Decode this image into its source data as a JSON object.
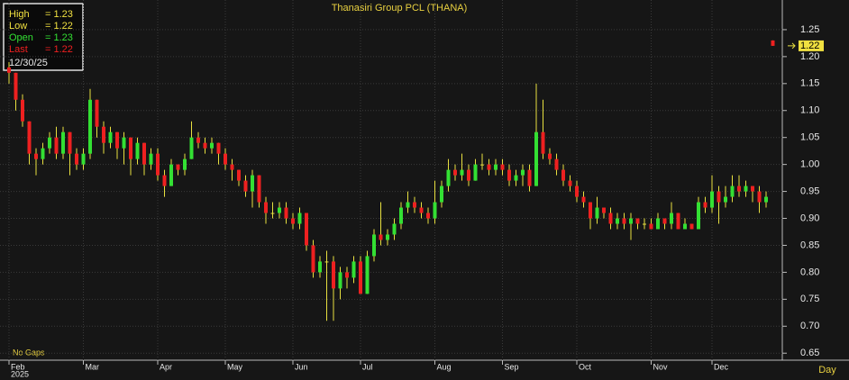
{
  "chart_data": {
    "type": "candlestick",
    "title": "Thanasiri Group PCL (THANA)",
    "categories": [
      "Feb",
      null,
      null,
      null,
      null,
      null,
      null,
      null,
      null,
      null,
      null,
      "Mar",
      null,
      null,
      null,
      null,
      null,
      null,
      null,
      null,
      null,
      null,
      "Apr",
      null,
      null,
      null,
      null,
      null,
      null,
      null,
      null,
      null,
      "May",
      null,
      null,
      null,
      null,
      null,
      null,
      null,
      null,
      null,
      "Jun",
      null,
      null,
      null,
      null,
      null,
      null,
      null,
      null,
      null,
      "Jul",
      null,
      null,
      null,
      null,
      null,
      null,
      null,
      null,
      null,
      null,
      "Aug",
      null,
      null,
      null,
      null,
      null,
      null,
      null,
      null,
      null,
      "Sep",
      null,
      null,
      null,
      null,
      null,
      null,
      null,
      null,
      null,
      null,
      "Oct",
      null,
      null,
      null,
      null,
      null,
      null,
      null,
      null,
      null,
      null,
      "Nov",
      null,
      null,
      null,
      null,
      null,
      null,
      null,
      null,
      "Dec",
      null,
      null,
      null,
      null,
      null,
      null,
      null,
      null,
      null
    ],
    "ohlc": [
      [
        1.18,
        1.19,
        1.15,
        1.17
      ],
      [
        1.17,
        1.17,
        1.1,
        1.12
      ],
      [
        1.12,
        1.13,
        1.07,
        1.08
      ],
      [
        1.08,
        1.08,
        1.0,
        1.02
      ],
      [
        1.02,
        1.03,
        0.98,
        1.01
      ],
      [
        1.01,
        1.04,
        1.0,
        1.03
      ],
      [
        1.03,
        1.06,
        1.02,
        1.05
      ],
      [
        1.05,
        1.07,
        1.01,
        1.02
      ],
      [
        1.02,
        1.07,
        1.01,
        1.06
      ],
      [
        1.06,
        1.06,
        0.98,
        1.02
      ],
      [
        1.02,
        1.03,
        0.99,
        1.0
      ],
      [
        1.0,
        1.03,
        0.99,
        1.02
      ],
      [
        1.02,
        1.14,
        1.01,
        1.12
      ],
      [
        1.12,
        1.12,
        1.05,
        1.07
      ],
      [
        1.07,
        1.08,
        1.02,
        1.04
      ],
      [
        1.04,
        1.07,
        1.03,
        1.06
      ],
      [
        1.06,
        1.06,
        1.01,
        1.03
      ],
      [
        1.03,
        1.06,
        1.0,
        1.05
      ],
      [
        1.05,
        1.05,
        0.98,
        1.01
      ],
      [
        1.01,
        1.05,
        1.0,
        1.04
      ],
      [
        1.04,
        1.04,
        0.98,
        1.0
      ],
      [
        1.0,
        1.03,
        0.99,
        1.02
      ],
      [
        1.02,
        1.03,
        0.97,
        0.98
      ],
      [
        0.98,
        0.99,
        0.94,
        0.96
      ],
      [
        0.96,
        1.01,
        0.96,
        1.0
      ],
      [
        1.0,
        1.0,
        0.98,
        0.99
      ],
      [
        0.99,
        1.02,
        0.98,
        1.01
      ],
      [
        1.01,
        1.08,
        1.01,
        1.05
      ],
      [
        1.05,
        1.06,
        1.03,
        1.04
      ],
      [
        1.04,
        1.05,
        1.02,
        1.03
      ],
      [
        1.03,
        1.05,
        1.02,
        1.04
      ],
      [
        1.04,
        1.04,
        1.0,
        1.02
      ],
      [
        1.02,
        1.03,
        0.99,
        1.0
      ],
      [
        1.0,
        1.01,
        0.97,
        0.99
      ],
      [
        0.99,
        0.99,
        0.96,
        0.97
      ],
      [
        0.97,
        0.98,
        0.94,
        0.95
      ],
      [
        0.95,
        0.99,
        0.92,
        0.98
      ],
      [
        0.98,
        0.98,
        0.92,
        0.93
      ],
      [
        0.93,
        0.94,
        0.89,
        0.91
      ],
      [
        0.91,
        0.93,
        0.9,
        0.91
      ],
      [
        0.91,
        0.93,
        0.9,
        0.92
      ],
      [
        0.92,
        0.93,
        0.89,
        0.9
      ],
      [
        0.9,
        0.91,
        0.88,
        0.89
      ],
      [
        0.89,
        0.92,
        0.88,
        0.91
      ],
      [
        0.91,
        0.91,
        0.84,
        0.85
      ],
      [
        0.85,
        0.86,
        0.79,
        0.8
      ],
      [
        0.8,
        0.83,
        0.79,
        0.82
      ],
      [
        0.82,
        0.84,
        0.71,
        0.82
      ],
      [
        0.82,
        0.83,
        0.71,
        0.77
      ],
      [
        0.77,
        0.81,
        0.75,
        0.8
      ],
      [
        0.8,
        0.81,
        0.77,
        0.79
      ],
      [
        0.79,
        0.83,
        0.78,
        0.82
      ],
      [
        0.82,
        0.83,
        0.76,
        0.76
      ],
      [
        0.76,
        0.84,
        0.76,
        0.83
      ],
      [
        0.83,
        0.88,
        0.82,
        0.87
      ],
      [
        0.87,
        0.93,
        0.85,
        0.86
      ],
      [
        0.86,
        0.88,
        0.85,
        0.87
      ],
      [
        0.87,
        0.9,
        0.86,
        0.89
      ],
      [
        0.89,
        0.93,
        0.88,
        0.92
      ],
      [
        0.92,
        0.95,
        0.91,
        0.93
      ],
      [
        0.93,
        0.94,
        0.91,
        0.92
      ],
      [
        0.92,
        0.93,
        0.9,
        0.91
      ],
      [
        0.91,
        0.92,
        0.89,
        0.9
      ],
      [
        0.9,
        0.97,
        0.89,
        0.93
      ],
      [
        0.93,
        0.97,
        0.92,
        0.96
      ],
      [
        0.96,
        1.01,
        0.95,
        0.99
      ],
      [
        0.99,
        1.0,
        0.97,
        0.98
      ],
      [
        0.98,
        1.02,
        0.97,
        0.99
      ],
      [
        0.99,
        1.0,
        0.96,
        0.97
      ],
      [
        0.97,
        1.01,
        0.97,
        1.0
      ],
      [
        1.0,
        1.02,
        0.99,
        1.0
      ],
      [
        1.0,
        1.01,
        0.98,
        0.99
      ],
      [
        0.99,
        1.01,
        0.98,
        1.0
      ],
      [
        1.0,
        1.01,
        0.98,
        0.99
      ],
      [
        0.99,
        1.0,
        0.96,
        0.97
      ],
      [
        0.97,
        0.99,
        0.96,
        0.98
      ],
      [
        0.98,
        1.0,
        0.96,
        0.99
      ],
      [
        0.99,
        1.0,
        0.95,
        0.96
      ],
      [
        0.96,
        1.15,
        0.96,
        1.06
      ],
      [
        1.06,
        1.12,
        1.01,
        1.02
      ],
      [
        1.02,
        1.03,
        1.0,
        1.01
      ],
      [
        1.01,
        1.02,
        0.98,
        0.99
      ],
      [
        0.99,
        1.0,
        0.96,
        0.97
      ],
      [
        0.97,
        0.98,
        0.95,
        0.96
      ],
      [
        0.96,
        0.97,
        0.93,
        0.94
      ],
      [
        0.94,
        0.95,
        0.92,
        0.93
      ],
      [
        0.93,
        0.93,
        0.88,
        0.9
      ],
      [
        0.9,
        0.94,
        0.89,
        0.92
      ],
      [
        0.92,
        0.92,
        0.9,
        0.91
      ],
      [
        0.91,
        0.92,
        0.88,
        0.89
      ],
      [
        0.89,
        0.91,
        0.88,
        0.9
      ],
      [
        0.9,
        0.91,
        0.88,
        0.89
      ],
      [
        0.89,
        0.91,
        0.86,
        0.9
      ],
      [
        0.9,
        0.9,
        0.88,
        0.89
      ],
      [
        0.89,
        0.9,
        0.88,
        0.89
      ],
      [
        0.89,
        0.9,
        0.88,
        0.88
      ],
      [
        0.88,
        0.91,
        0.88,
        0.9
      ],
      [
        0.9,
        0.9,
        0.88,
        0.89
      ],
      [
        0.89,
        0.93,
        0.88,
        0.91
      ],
      [
        0.91,
        0.91,
        0.88,
        0.88
      ],
      [
        0.88,
        0.9,
        0.88,
        0.89
      ],
      [
        0.89,
        0.89,
        0.88,
        0.88
      ],
      [
        0.88,
        0.94,
        0.88,
        0.93
      ],
      [
        0.93,
        0.94,
        0.91,
        0.92
      ],
      [
        0.92,
        0.98,
        0.91,
        0.95
      ],
      [
        0.95,
        0.96,
        0.89,
        0.93
      ],
      [
        0.93,
        0.96,
        0.92,
        0.94
      ],
      [
        0.94,
        0.98,
        0.93,
        0.96
      ],
      [
        0.96,
        0.98,
        0.94,
        0.95
      ],
      [
        0.95,
        0.97,
        0.94,
        0.96
      ],
      [
        0.96,
        0.96,
        0.93,
        0.95
      ],
      [
        0.95,
        0.96,
        0.91,
        0.93
      ],
      [
        0.93,
        0.95,
        0.92,
        0.94
      ],
      [
        1.23,
        1.23,
        1.22,
        1.22
      ]
    ],
    "up_color": "#33e033",
    "down_color": "#ee2020",
    "flat_color": "#e8e040",
    "ylim": [
      0.637,
      1.305
    ],
    "yticks": [
      0.65,
      {
        "value": 0.7,
        "label": "0.70"
      },
      0.75,
      {
        "value": 0.8,
        "label": "0.80"
      },
      0.85,
      {
        "value": 0.9,
        "label": "0.90"
      },
      0.95,
      {
        "value": 1,
        "label": "1.00"
      },
      1.05,
      {
        "value": 1.1,
        "label": "1.10"
      },
      1.15,
      {
        "value": 1.2,
        "label": "1.20"
      },
      1.25
    ],
    "grid": true,
    "year_label": "2025",
    "x_axis_label": "Day",
    "note": "No Gaps",
    "last_price": 1.22,
    "info_box": {
      "rows": [
        {
          "name": "High",
          "value": "= 1.23",
          "color": "#f0e040"
        },
        {
          "name": "Low",
          "value": "= 1.22",
          "color": "#f0e040"
        },
        {
          "name": "Open",
          "value": "= 1.23",
          "color": "#33e033"
        },
        {
          "name": "Last",
          "value": "= 1.22",
          "color": "#ee2020"
        }
      ],
      "date": "12/30/25"
    }
  }
}
